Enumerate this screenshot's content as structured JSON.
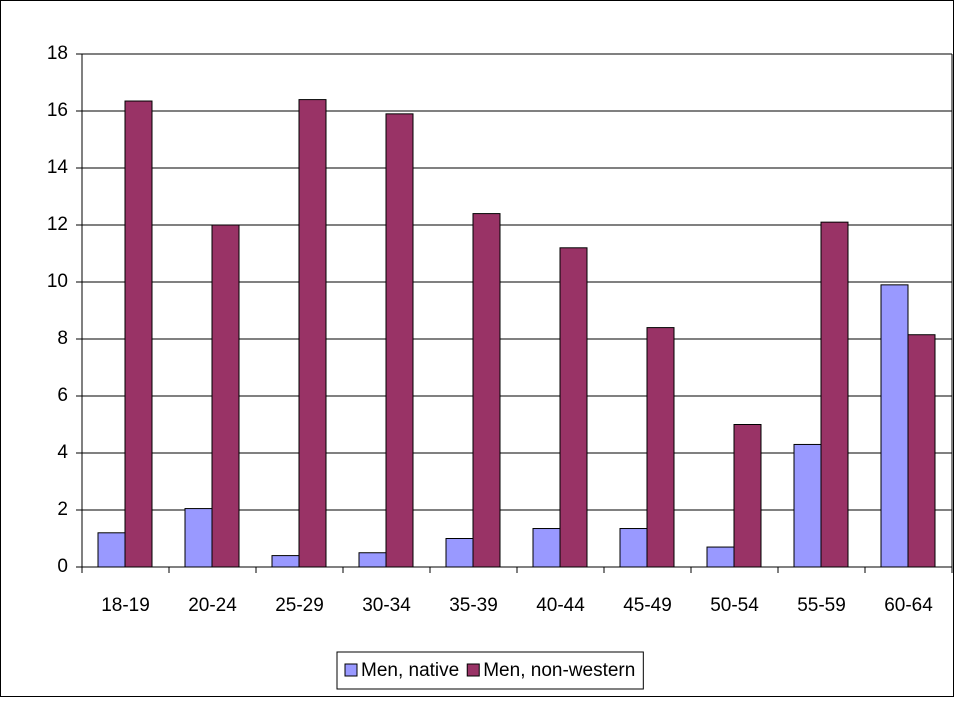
{
  "chart_data": {
    "type": "bar",
    "categories": [
      "18-19",
      "20-24",
      "25-29",
      "30-34",
      "35-39",
      "40-44",
      "45-49",
      "50-54",
      "55-59",
      "60-64"
    ],
    "series": [
      {
        "name": "Men, native",
        "color": "#9999ff",
        "values": [
          1.2,
          2.05,
          0.4,
          0.5,
          1.0,
          1.35,
          1.35,
          0.7,
          4.3,
          9.9
        ]
      },
      {
        "name": "Men, non-western",
        "color": "#993366",
        "values": [
          16.35,
          12.0,
          16.4,
          15.9,
          12.4,
          11.2,
          8.4,
          5.0,
          12.1,
          8.15
        ]
      }
    ],
    "ylim": [
      0,
      18
    ],
    "yticks": [
      0,
      2,
      4,
      6,
      8,
      10,
      12,
      14,
      16,
      18
    ],
    "grid": true,
    "legend": "bottom"
  }
}
